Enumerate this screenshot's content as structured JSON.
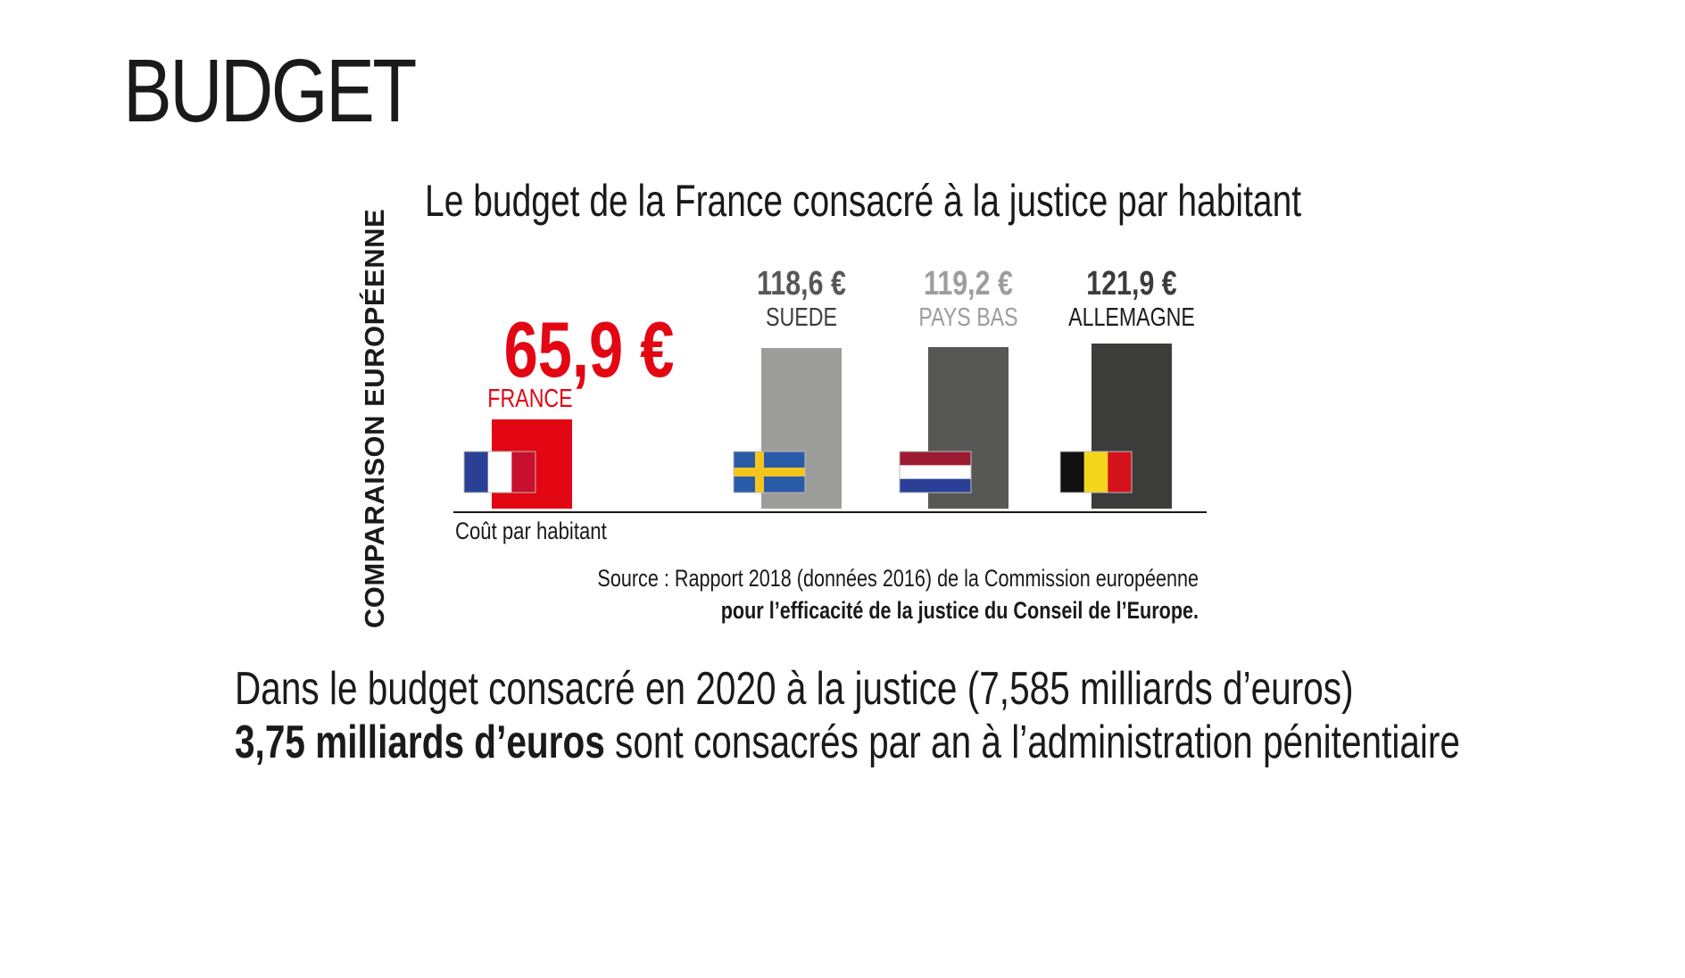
{
  "page": {
    "title": "BUDGET"
  },
  "side_label": "COMPARAISON EUROPÉENNE",
  "chart_data": {
    "type": "bar",
    "title": "Le budget de la France consacré à la justice par habitant",
    "xlabel": "Coût par habitant",
    "ylabel": "",
    "unit": "€",
    "categories": [
      "FRANCE",
      "SUEDE",
      "PAYS BAS",
      "ALLEMAGNE"
    ],
    "values": [
      65.9,
      118.6,
      119.2,
      121.9
    ],
    "value_labels": [
      "65,9 €",
      "118,6 €",
      "119,2 €",
      "121,9 €"
    ],
    "flags": [
      "france-flag-icon",
      "sweden-flag-icon",
      "netherlands-flag-icon",
      "belgium-flag-icon"
    ],
    "colors": {
      "bars": [
        "#e30613",
        "#9d9d9c",
        "#575756",
        "#3c3c3b"
      ],
      "value_labels": [
        "#e30613",
        "#575756",
        "#9d9d9c",
        "#3c3c3b"
      ],
      "category_labels": [
        "#e30613",
        "#3c3c3b",
        "#9d9d9c",
        "#1a1a1a"
      ]
    },
    "ylim": [
      0,
      125
    ],
    "grid": false,
    "legend": "none"
  },
  "source": {
    "line1": "Source : Rapport 2018 (données 2016) de la Commission européenne",
    "line2": "pour l’efficacité de la justice du Conseil de l’Europe."
  },
  "bottom": {
    "line1": "Dans le budget consacré en 2020 à la justice (7,585 milliards d’euros)",
    "line2_bold": "3,75 milliards d’euros",
    "line2_rest": " sont consacrés par an à l’administration pénitentiaire"
  }
}
